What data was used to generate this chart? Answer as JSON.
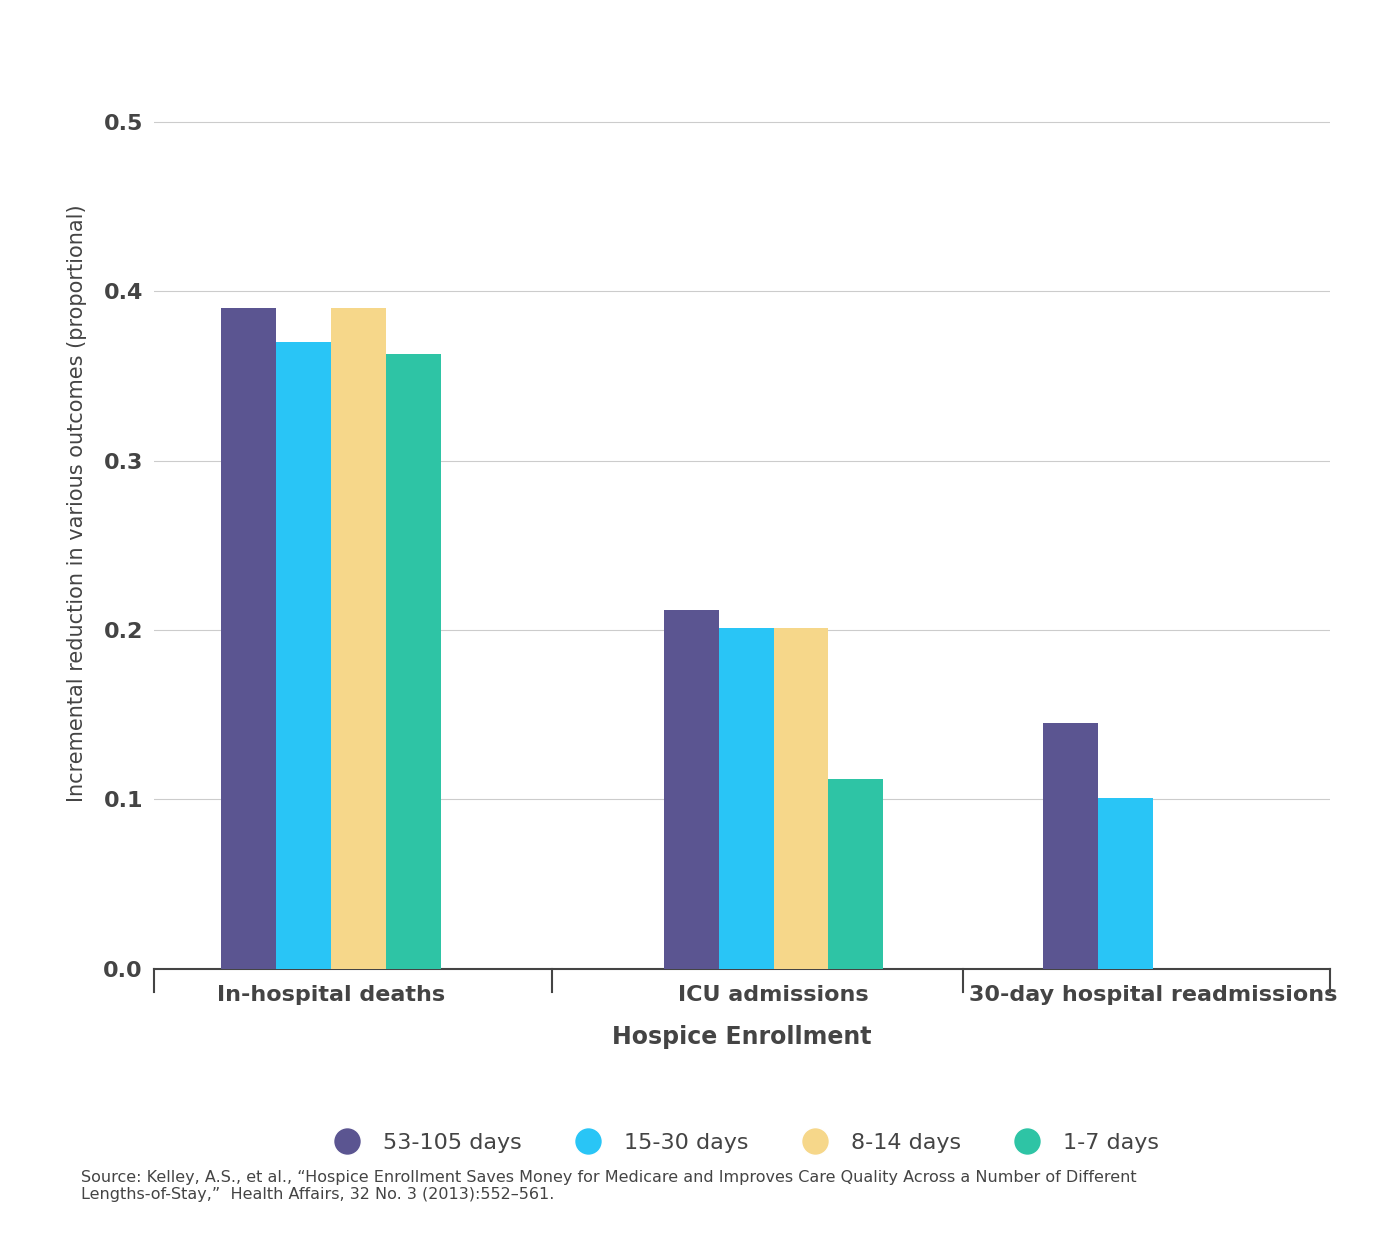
{
  "categories": [
    "In-hospital deaths",
    "ICU admissions",
    "30-day hospital readmissions"
  ],
  "series": [
    {
      "label": "53-105 days",
      "color": "#5b5591",
      "values": [
        0.39,
        0.212,
        0.145
      ]
    },
    {
      "label": "15-30 days",
      "color": "#29c5f6",
      "values": [
        0.37,
        0.201,
        0.101
      ]
    },
    {
      "label": "8-14 days",
      "color": "#f6d78a",
      "values": [
        0.39,
        0.201,
        null
      ]
    },
    {
      "label": "1-7 days",
      "color": "#2ec4a5",
      "values": [
        0.363,
        0.112,
        null
      ]
    }
  ],
  "ylabel": "Incremental reduction in various outcomes (proportional)",
  "xlabel": "Hospice Enrollment",
  "ylim": [
    0,
    0.55
  ],
  "yticks": [
    0,
    0.1,
    0.2,
    0.3,
    0.4,
    0.5
  ],
  "source_text": "Source: Kelley, A.S., et al., “Hospice Enrollment Saves Money for Medicare and Improves Care Quality Across a Number of Different\nLengths-of-Stay,”  Health Affairs, 32 No. 3 (2013):552–561.",
  "background_color": "#ffffff",
  "grid_color": "#cccccc",
  "bar_width": 0.13,
  "group_centers": [
    0.0,
    1.05,
    1.95
  ]
}
